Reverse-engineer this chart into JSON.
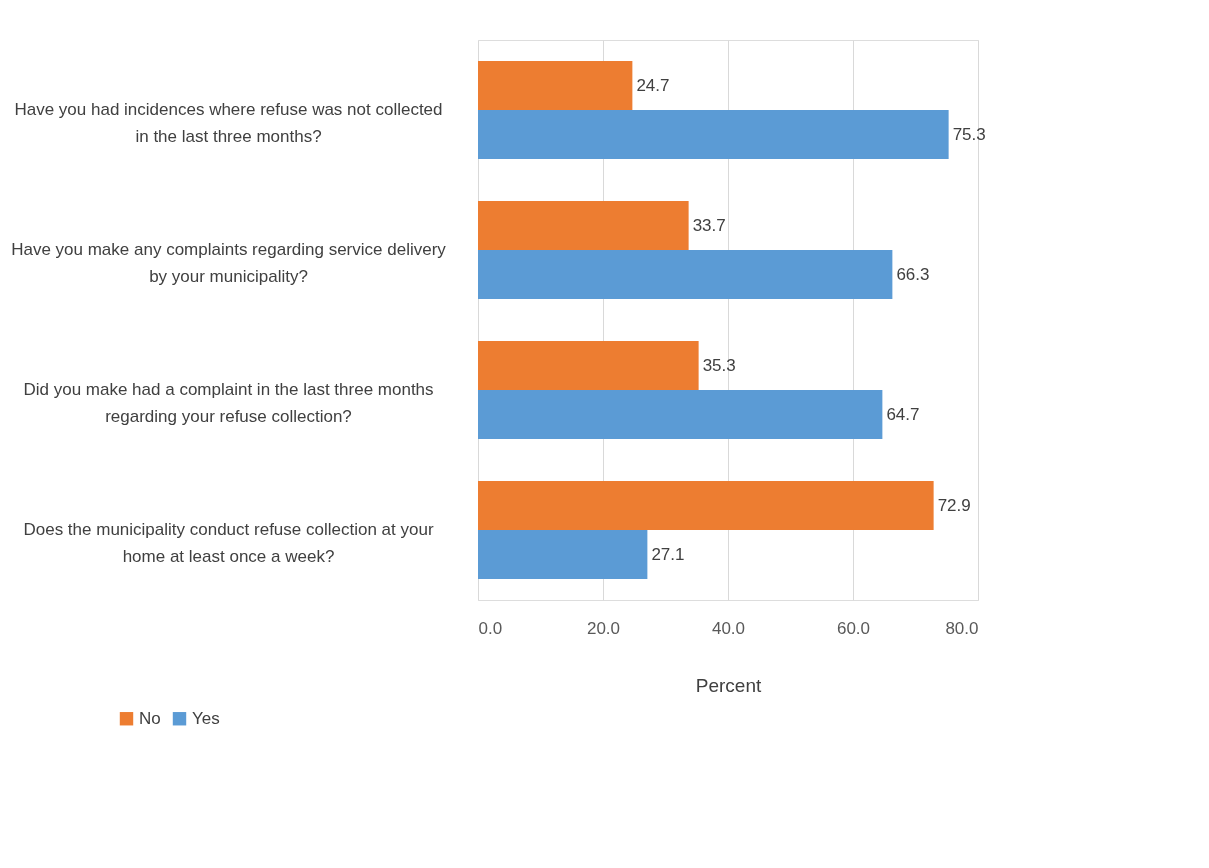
{
  "chart_data": {
    "type": "bar",
    "orientation": "horizontal",
    "xlabel": "Percent",
    "categories": [
      "Have you had incidences where refuse was not collected in the last three months?",
      "Have you make any complaints regarding service delivery by your municipality?",
      "Did you make had a complaint in the last three months regarding your refuse collection?",
      "Does the municipality conduct refuse collection at your home at least once a week?"
    ],
    "series": [
      {
        "name": "No",
        "color": "#ed7d31",
        "values": [
          24.7,
          33.7,
          35.3,
          72.9
        ]
      },
      {
        "name": "Yes",
        "color": "#5b9bd5",
        "values": [
          75.3,
          66.3,
          64.7,
          27.1
        ]
      }
    ],
    "xlim": [
      0,
      80
    ],
    "xticks": [
      {
        "value": 0,
        "label": "0.0"
      },
      {
        "value": 20,
        "label": "20.0"
      },
      {
        "value": 40,
        "label": "40.0"
      },
      {
        "value": 60,
        "label": "60.0"
      },
      {
        "value": 80,
        "label": "80.0"
      }
    ],
    "data_labels": true,
    "grid": "x",
    "legend": "bottom left"
  }
}
